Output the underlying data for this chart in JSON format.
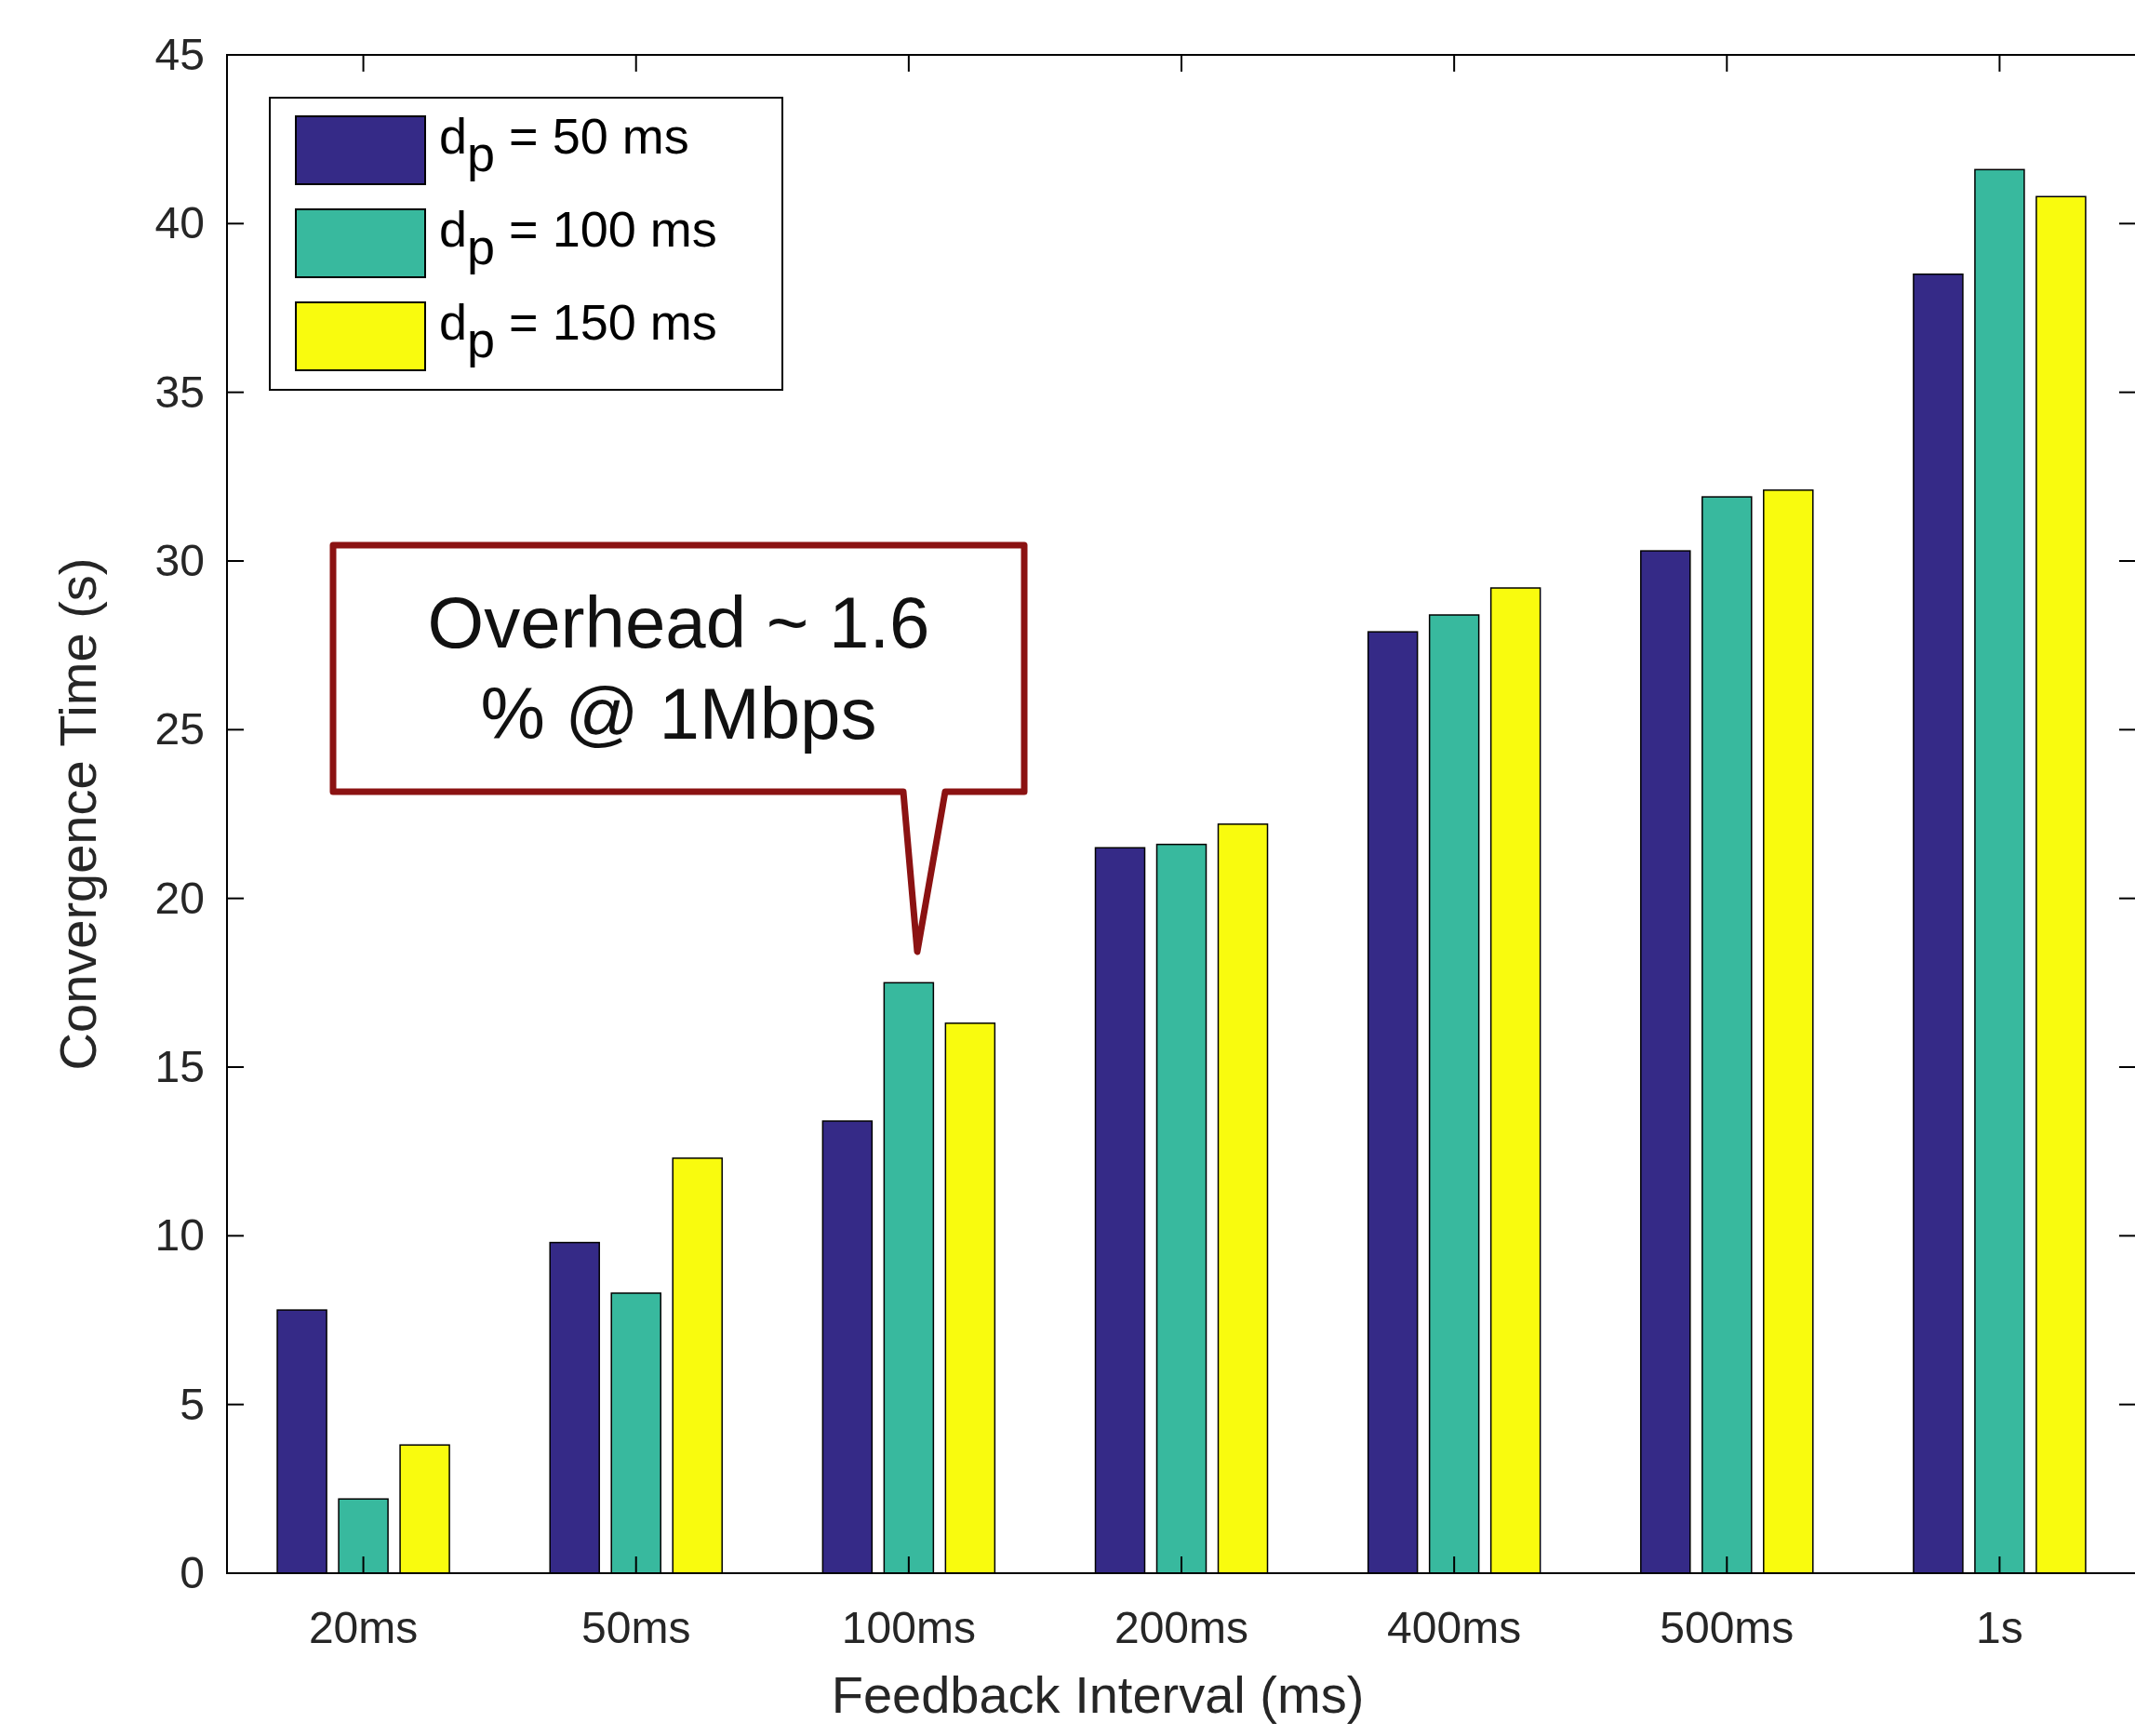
{
  "chart_data": {
    "type": "bar",
    "xlabel": "Feedback Interval (ms)",
    "ylabel": "Convergence Time (s)",
    "categories": [
      "20ms",
      "50ms",
      "100ms",
      "200ms",
      "400ms",
      "500ms",
      "1s"
    ],
    "series": [
      {
        "name": "d$_{p}$ = 50 ms",
        "color": "#352a87",
        "values": [
          7.8,
          9.8,
          13.4,
          21.5,
          27.9,
          30.3,
          38.5
        ]
      },
      {
        "name": "d$_{p}$ = 100 ms",
        "color": "#38b99e",
        "values": [
          2.2,
          8.3,
          17.5,
          21.6,
          28.4,
          31.9,
          41.6
        ]
      },
      {
        "name": "d$_{p}$ = 150 ms",
        "color": "#f9fb0e",
        "values": [
          3.8,
          12.3,
          16.3,
          22.2,
          29.2,
          32.1,
          40.8
        ]
      }
    ],
    "ylim": [
      0,
      45
    ],
    "yticks": [
      0,
      5,
      10,
      15,
      20,
      25,
      30,
      35,
      40,
      45
    ],
    "grid": false,
    "legend": "top left",
    "annotations": [
      "Overhead ~ 1.6 % @ 1Mbps"
    ]
  }
}
